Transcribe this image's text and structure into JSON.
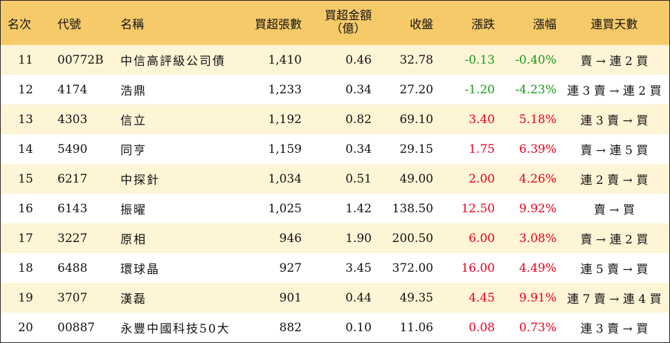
{
  "headers": {
    "rank": "名次",
    "code": "代號",
    "name": "名稱",
    "net_buy_volume": "買超張數",
    "net_buy_amount_line1": "買超金額",
    "net_buy_amount_line2": "（億）",
    "close": "收盤",
    "change": "漲跌",
    "change_pct": "漲幅",
    "consecutive_days": "連買天數"
  },
  "colors": {
    "header_bg": "#f7ca69",
    "odd_row_bg": "#fef4d6",
    "up": "#e8001c",
    "down": "#1a9a1a"
  },
  "rows": [
    {
      "rank": "11",
      "code": "00772B",
      "name": "中信高評級公司債",
      "vol": "1,410",
      "amt": "0.46",
      "close": "32.78",
      "chg": "-0.13",
      "pct": "-0.40%",
      "dir": "down",
      "days": "賣 → 連 2 買"
    },
    {
      "rank": "12",
      "code": "4174",
      "name": "浩鼎",
      "vol": "1,233",
      "amt": "0.34",
      "close": "27.20",
      "chg": "-1.20",
      "pct": "-4.23%",
      "dir": "down",
      "days": "連 3 賣 → 連 2 買"
    },
    {
      "rank": "13",
      "code": "4303",
      "name": "信立",
      "vol": "1,192",
      "amt": "0.82",
      "close": "69.10",
      "chg": "3.40",
      "pct": "5.18%",
      "dir": "up",
      "days": "連 3 賣 → 買"
    },
    {
      "rank": "14",
      "code": "5490",
      "name": "同亨",
      "vol": "1,159",
      "amt": "0.34",
      "close": "29.15",
      "chg": "1.75",
      "pct": "6.39%",
      "dir": "up",
      "days": "賣 → 連 5 買"
    },
    {
      "rank": "15",
      "code": "6217",
      "name": "中探針",
      "vol": "1,034",
      "amt": "0.51",
      "close": "49.00",
      "chg": "2.00",
      "pct": "4.26%",
      "dir": "up",
      "days": "連 2 賣 → 買"
    },
    {
      "rank": "16",
      "code": "6143",
      "name": "振曜",
      "vol": "1,025",
      "amt": "1.42",
      "close": "138.50",
      "chg": "12.50",
      "pct": "9.92%",
      "dir": "up",
      "days": "賣 → 買"
    },
    {
      "rank": "17",
      "code": "3227",
      "name": "原相",
      "vol": "946",
      "amt": "1.90",
      "close": "200.50",
      "chg": "6.00",
      "pct": "3.08%",
      "dir": "up",
      "days": "賣 → 連 2 買"
    },
    {
      "rank": "18",
      "code": "6488",
      "name": "環球晶",
      "vol": "927",
      "amt": "3.45",
      "close": "372.00",
      "chg": "16.00",
      "pct": "4.49%",
      "dir": "up",
      "days": "連 5 賣 → 買"
    },
    {
      "rank": "19",
      "code": "3707",
      "name": "漢磊",
      "vol": "901",
      "amt": "0.44",
      "close": "49.35",
      "chg": "4.45",
      "pct": "9.91%",
      "dir": "up",
      "days": "連 7 賣 → 連 4 買"
    },
    {
      "rank": "20",
      "code": "00887",
      "name": "永豐中國科技50大",
      "vol": "882",
      "amt": "0.10",
      "close": "11.06",
      "chg": "0.08",
      "pct": "0.73%",
      "dir": "up",
      "days": "連 3 賣 → 買"
    }
  ]
}
